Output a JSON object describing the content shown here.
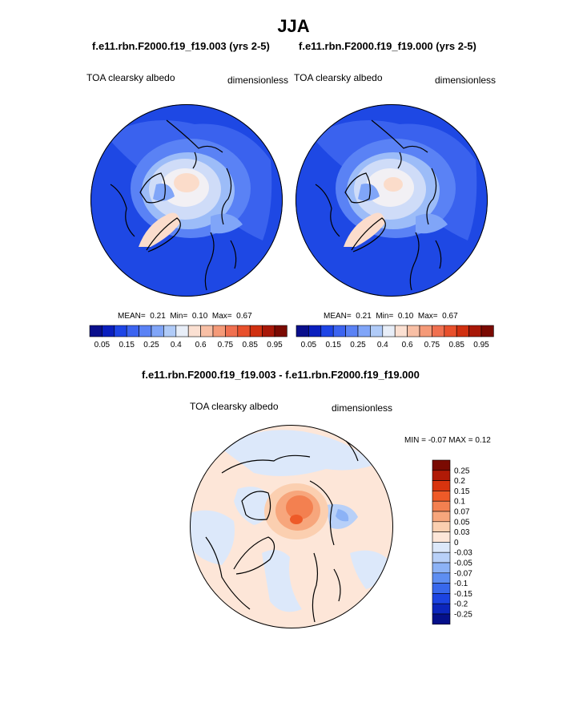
{
  "main_title": "JJA",
  "panels": [
    {
      "subtitle": "f.e11.rbn.F2000.f19_f19.003 (yrs 2-5)",
      "left_label": "TOA clearsky albedo",
      "right_label": "dimensionless",
      "stats": {
        "mean": "0.21",
        "min": "0.10",
        "max": "0.67"
      }
    },
    {
      "subtitle": "f.e11.rbn.F2000.f19_f19.000 (yrs 2-5)",
      "left_label": "TOA clearsky albedo",
      "right_label": "dimensionless",
      "stats": {
        "mean": "0.21",
        "min": "0.10",
        "max": "0.67"
      }
    }
  ],
  "stats_labels": {
    "mean": "MEAN=",
    "min": "Min=",
    "max": "Max="
  },
  "colorbar_top": {
    "colors": [
      "#0a0f8c",
      "#0a1fbe",
      "#1e45e6",
      "#3c64f0",
      "#5a82f5",
      "#80a5f8",
      "#b0cbf8",
      "#e8eef8",
      "#fbe0d2",
      "#f8bfa5",
      "#f59a78",
      "#f07050",
      "#e8502c",
      "#d03010",
      "#a81808",
      "#7a0a02"
    ],
    "tick_labels": [
      "0.05",
      "0.15",
      "0.25",
      "0.4",
      "0.6",
      "0.75",
      "0.85",
      "0.95"
    ]
  },
  "diff_panel": {
    "subtitle": "f.e11.rbn.F2000.f19_f19.003 - f.e11.rbn.F2000.f19_f19.000",
    "left_label": "TOA clearsky albedo",
    "right_label": "dimensionless",
    "minmax_text": "MIN = -0.07 MAX = 0.12"
  },
  "colorbar_diff": {
    "colors": [
      "#7a0a02",
      "#b01a06",
      "#d8340e",
      "#ee5a28",
      "#f38050",
      "#f7a67c",
      "#fbcfb0",
      "#fde6d8",
      "#dce8fa",
      "#b8d0f8",
      "#8cb2f6",
      "#5e8ef2",
      "#3868ec",
      "#1c44e2",
      "#0c26bc",
      "#05108a"
    ],
    "tick_labels": [
      "0.25",
      "0.2",
      "0.15",
      "0.1",
      "0.07",
      "0.05",
      "0.03",
      "0",
      "-0.03",
      "-0.05",
      "-0.07",
      "-0.1",
      "-0.15",
      "-0.2",
      "-0.25"
    ]
  }
}
